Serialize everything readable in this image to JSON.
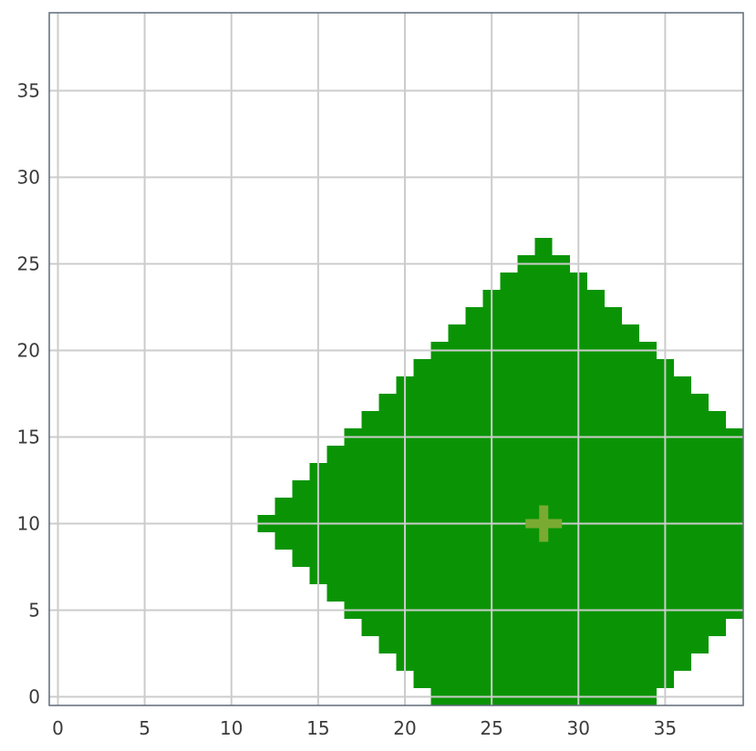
{
  "chart_data": {
    "type": "heatmap",
    "title": "",
    "xlabel": "",
    "ylabel": "",
    "xlim": [
      -0.5,
      39.5
    ],
    "ylim": [
      -0.5,
      39.5
    ],
    "xticks": [
      0,
      5,
      10,
      15,
      20,
      25,
      30,
      35
    ],
    "yticks": [
      0,
      5,
      10,
      15,
      20,
      25,
      30,
      35
    ],
    "xtick_labels": [
      "0",
      "5",
      "10",
      "15",
      "20",
      "25",
      "30",
      "35"
    ],
    "ytick_labels": [
      "0",
      "5",
      "10",
      "15",
      "20",
      "25",
      "30",
      "35"
    ],
    "grid": true,
    "region": {
      "shape": "diamond (L1-norm ball on integer grid)",
      "center": [
        28,
        10
      ],
      "radius": 16,
      "color": "#0a9405",
      "clipped_to_axes": true
    },
    "marker": {
      "type": "plus",
      "x": 28,
      "y": 10,
      "color": "#7aaa32"
    },
    "colors": {
      "background": "#ffffff",
      "grid": "#cccccc",
      "frame": "#5f6b78",
      "tick_text": "#3b3b3b"
    }
  }
}
